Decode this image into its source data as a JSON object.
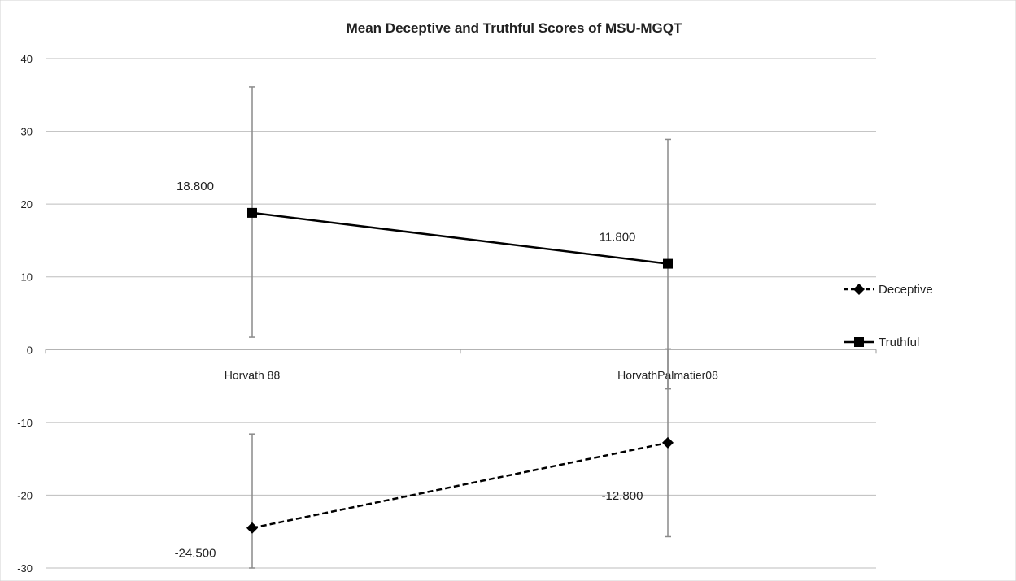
{
  "chart_data": {
    "type": "line",
    "title": "Mean Deceptive and Truthful Scores of MSU-MGQT",
    "categories": [
      "Horvath 88",
      "HorvathPalmatier08"
    ],
    "ylim": [
      -30,
      40
    ],
    "yticks": [
      40,
      30,
      20,
      10,
      0,
      -10,
      -20,
      -30
    ],
    "grid": true,
    "legend_position": "right",
    "series": [
      {
        "name": "Deceptive",
        "values": [
          -24.5,
          -12.8
        ],
        "labels": [
          "-24.500",
          "-12.800"
        ],
        "error_bars": [
          [
            -30,
            -11.6
          ],
          [
            -25.7,
            0.1
          ]
        ],
        "marker": "diamond",
        "line_style": "dashed",
        "color": "#000000"
      },
      {
        "name": "Truthful",
        "values": [
          18.8,
          11.8
        ],
        "labels": [
          "18.800",
          "11.800"
        ],
        "error_bars": [
          [
            1.7,
            36.1
          ],
          [
            -5.4,
            28.9
          ]
        ],
        "marker": "square",
        "line_style": "solid",
        "color": "#000000"
      }
    ]
  }
}
